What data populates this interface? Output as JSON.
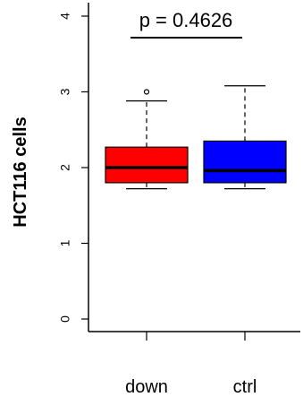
{
  "chart_data": {
    "type": "box",
    "ylabel": "HCT116 cells",
    "ylim": [
      0,
      4
    ],
    "yticks": [
      0,
      1,
      2,
      3,
      4
    ],
    "categories": [
      "down",
      "ctrl"
    ],
    "boxes": [
      {
        "category": "down",
        "color": "#ff0000",
        "whisker_low": 1.72,
        "q1": 1.8,
        "median": 2.0,
        "q3": 2.27,
        "whisker_high": 2.88,
        "outliers": [
          3.0
        ]
      },
      {
        "category": "ctrl",
        "color": "#0000ff",
        "whisker_low": 1.72,
        "q1": 1.8,
        "median": 1.96,
        "q3": 2.35,
        "whisker_high": 3.08,
        "outliers": []
      }
    ],
    "annotation": {
      "text": "p = 0.4626"
    }
  }
}
